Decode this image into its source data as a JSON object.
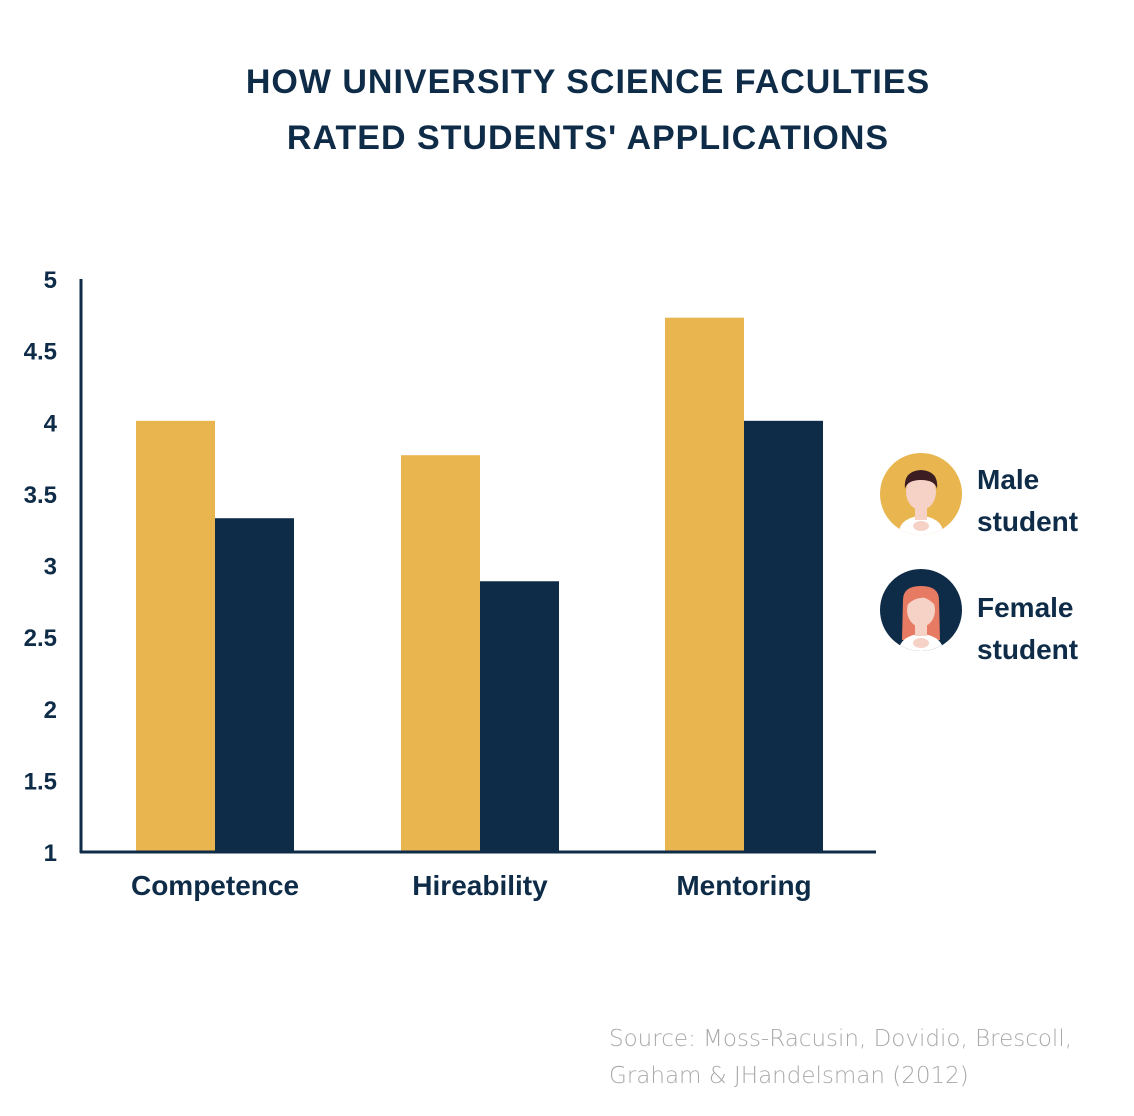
{
  "title_line1": "HOW UNIVERSITY SCIENCE FACULTIES",
  "title_line2": "RATED STUDENTS' APPLICATIONS",
  "legend": {
    "male_line1": "Male",
    "male_line2": "student",
    "female_line1": "Female",
    "female_line2": "student"
  },
  "source_line1": "Source: Moss-Racusin, Dovidio, Brescoll,",
  "source_line2": "Graham & JHandelsman (2012)",
  "colors": {
    "male": "#e8b54f",
    "female": "#0e2b47",
    "axis": "#0e2b47",
    "text": "#0e2b47",
    "skin": "#f6d2c6",
    "male_hair": "#3b1d22",
    "female_hair": "#e67a62"
  },
  "chart_data": {
    "type": "bar",
    "title": "HOW UNIVERSITY SCIENCE FACULTIES RATED STUDENTS' APPLICATIONS",
    "xlabel": "",
    "ylabel": "",
    "categories": [
      "Competence",
      "Hireability",
      "Mentoring"
    ],
    "series": [
      {
        "name": "Male student",
        "values": [
          4.01,
          3.77,
          4.73
        ]
      },
      {
        "name": "Female student",
        "values": [
          3.33,
          2.89,
          4.01
        ]
      }
    ],
    "ylim": [
      1,
      5
    ],
    "yticks": [
      "1",
      "1.5",
      "2",
      "2.5",
      "3",
      "3.5",
      "4",
      "4.5",
      "5"
    ],
    "grid": false,
    "legend_position": "right"
  }
}
